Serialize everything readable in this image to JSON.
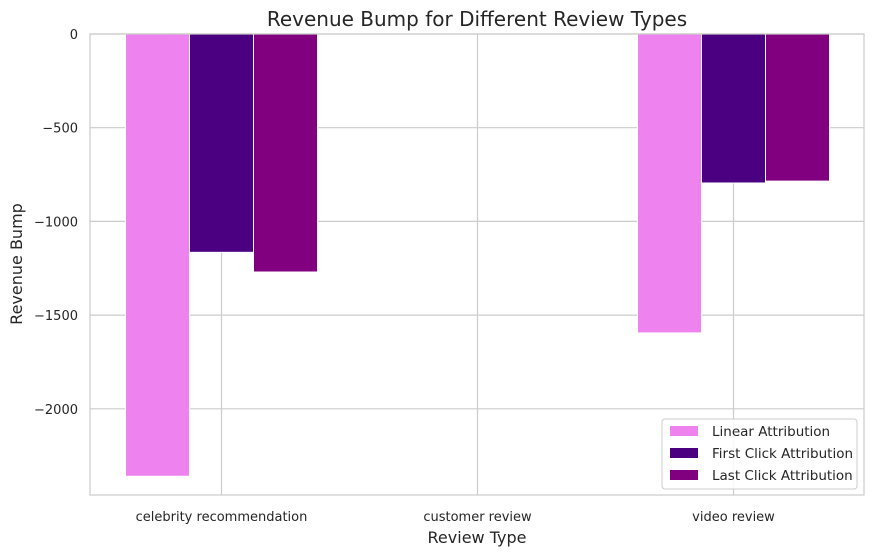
{
  "chart_data": {
    "type": "bar",
    "title": "Revenue Bump for Different Review Types",
    "xlabel": "Review Type",
    "ylabel": "Revenue Bump",
    "categories": [
      "celebrity recommendation",
      "customer review",
      "video review"
    ],
    "series": [
      {
        "name": "Linear Attribution",
        "color": "#ee82ee",
        "values": [
          -2360,
          0,
          -1595
        ]
      },
      {
        "name": "First Click Attribution",
        "color": "#4b0082",
        "values": [
          -1165,
          0,
          -795
        ]
      },
      {
        "name": "Last Click Attribution",
        "color": "#800080",
        "values": [
          -1270,
          0,
          -785
        ]
      }
    ],
    "ylim": [
      -2460,
      0
    ],
    "yticks": [
      0,
      -500,
      -1000,
      -1500,
      -2000
    ],
    "ytick_labels": [
      "0",
      "−500",
      "−1000",
      "−1500",
      "−2000"
    ],
    "grid": true,
    "legend_position": "lower-right"
  }
}
